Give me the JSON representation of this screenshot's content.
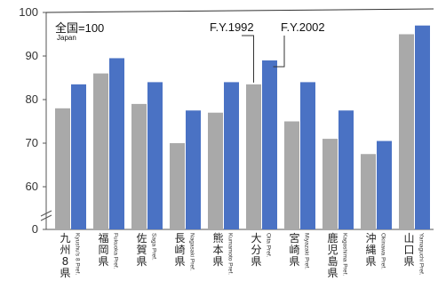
{
  "chart_data": {
    "type": "bar",
    "title": "",
    "xlabel": "",
    "ylabel": "",
    "ylim": [
      0,
      100
    ],
    "yticks": [
      0,
      60,
      70,
      80,
      90,
      100
    ],
    "axis_break": true,
    "grid": false,
    "categories": [
      {
        "jp": "九州8県",
        "en": "Kyushu's 8 Pref."
      },
      {
        "jp": "福岡県",
        "en": "Fukuoka Pref."
      },
      {
        "jp": "佐賀県",
        "en": "Saga Pref."
      },
      {
        "jp": "長崎県",
        "en": "Nagasaki Pref."
      },
      {
        "jp": "熊本県",
        "en": "Kumamoto Pref."
      },
      {
        "jp": "大分県",
        "en": "Oita Pref."
      },
      {
        "jp": "宮崎県",
        "en": "Miyazaki Pref."
      },
      {
        "jp": "鹿児島県",
        "en": "Kagoshima Pref."
      },
      {
        "jp": "沖縄県",
        "en": "Okinawa Pref."
      },
      {
        "jp": "山口県",
        "en": "Yamaguchi Pref."
      }
    ],
    "series": [
      {
        "name": "F.Y.1992",
        "color": "#a9a9a9",
        "values": [
          78,
          86,
          79,
          70,
          77,
          83.5,
          75,
          71,
          67.5,
          95
        ]
      },
      {
        "name": "F.Y.2002",
        "color": "#4a72c4",
        "values": [
          83.5,
          89.5,
          84,
          77.5,
          84,
          89,
          84,
          77.5,
          70.5,
          97
        ]
      }
    ],
    "annotation": {
      "text": "全国=100",
      "subtext": "Japan"
    }
  }
}
